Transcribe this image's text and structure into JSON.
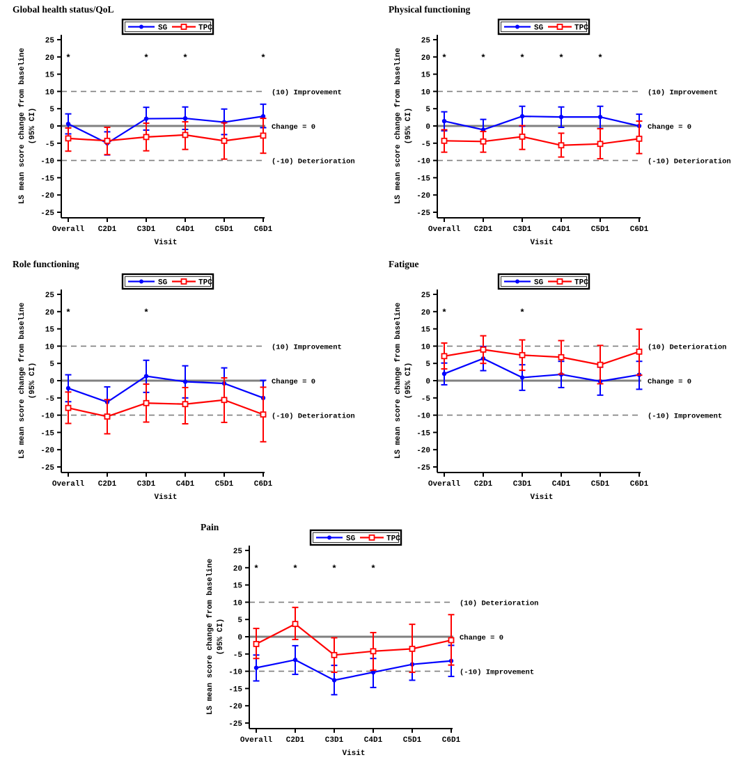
{
  "figure": {
    "categories": [
      "Overall",
      "C2D1",
      "C3D1",
      "C4D1",
      "C5D1",
      "C6D1"
    ],
    "xlabel": "Visit",
    "ylabel": "LS mean score change from baseline",
    "ylabel_line2": "(95% CI)",
    "yticks": [
      25,
      20,
      15,
      10,
      5,
      0,
      -5,
      -10,
      -15,
      -20,
      -25
    ],
    "ylim": [
      -25,
      25
    ],
    "grid": "off",
    "legend": {
      "position": "top-center",
      "entries": [
        {
          "label": "SG",
          "color": "#0000ff",
          "marker": "filled-circle"
        },
        {
          "label": "TPC",
          "color": "#ff0000",
          "marker": "open-square"
        }
      ]
    },
    "reference_lines": {
      "zero_value": 0,
      "upper_value": 10,
      "lower_value": -10,
      "zero_color": "#808080",
      "dashed_color": "#7f7f7f"
    },
    "significance_marker": "*",
    "significance_marker_y": 20
  },
  "chart_data": [
    {
      "type": "line",
      "title": "Global health status/QoL",
      "upper_label": "(10) Improvement",
      "zero_label": "Change = 0",
      "lower_label": "(-10) Deterioration",
      "significant_visits": [
        "Overall",
        "C3D1",
        "C4D1",
        "C6D1"
      ],
      "series": [
        {
          "name": "SG",
          "color": "#0000ff",
          "marker": "filled-circle",
          "values": [
            0.6,
            -5.0,
            2.1,
            2.2,
            1.1,
            2.8
          ],
          "ci_lower": [
            -2.3,
            -8.4,
            -1.2,
            -1.0,
            -2.5,
            -0.5
          ],
          "ci_upper": [
            3.5,
            -1.7,
            5.4,
            5.5,
            4.9,
            6.3
          ]
        },
        {
          "name": "TPC",
          "color": "#ff0000",
          "marker": "open-square",
          "values": [
            -3.6,
            -4.3,
            -3.2,
            -2.6,
            -4.3,
            -2.8
          ],
          "ci_lower": [
            -7.3,
            -8.3,
            -7.2,
            -6.8,
            -9.6,
            -7.9
          ],
          "ci_upper": [
            -0.6,
            -0.4,
            0.8,
            1.2,
            0.9,
            2.2
          ]
        }
      ]
    },
    {
      "type": "line",
      "title": "Physical functioning",
      "upper_label": "(10) Improvement",
      "zero_label": "Change = 0",
      "lower_label": "(-10) Deterioration",
      "significant_visits": [
        "Overall",
        "C2D1",
        "C3D1",
        "C4D1",
        "C5D1"
      ],
      "series": [
        {
          "name": "SG",
          "color": "#0000ff",
          "marker": "filled-circle",
          "values": [
            1.4,
            -1.1,
            2.8,
            2.6,
            2.6,
            0.0
          ],
          "ci_lower": [
            -1.4,
            -4.0,
            -0.1,
            -0.4,
            -0.7,
            -3.3
          ],
          "ci_upper": [
            4.1,
            1.9,
            5.7,
            5.5,
            5.7,
            3.4
          ]
        },
        {
          "name": "TPC",
          "color": "#ff0000",
          "marker": "open-square",
          "values": [
            -4.3,
            -4.5,
            -3.1,
            -5.6,
            -5.2,
            -3.7
          ],
          "ci_lower": [
            -7.6,
            -7.6,
            -6.8,
            -9.0,
            -9.5,
            -8.0
          ],
          "ci_upper": [
            -1.1,
            -1.6,
            0.1,
            -2.1,
            -0.8,
            1.4
          ]
        }
      ]
    },
    {
      "type": "line",
      "title": "Role functioning",
      "upper_label": "(10) Improvement",
      "zero_label": "Change = 0",
      "lower_label": "(-10) Deterioration",
      "significant_visits": [
        "Overall",
        "C3D1"
      ],
      "series": [
        {
          "name": "SG",
          "color": "#0000ff",
          "marker": "filled-circle",
          "values": [
            -2.2,
            -6.2,
            1.3,
            -0.3,
            -0.8,
            -5.0
          ],
          "ci_lower": [
            -6.1,
            -10.7,
            -3.4,
            -5.0,
            -5.3,
            -10.0
          ],
          "ci_upper": [
            1.7,
            -1.8,
            5.9,
            4.3,
            3.7,
            0.1
          ]
        },
        {
          "name": "TPC",
          "color": "#ff0000",
          "marker": "open-square",
          "values": [
            -7.9,
            -10.4,
            -6.5,
            -6.8,
            -5.6,
            -9.8
          ],
          "ci_lower": [
            -12.4,
            -15.4,
            -12.0,
            -12.5,
            -12.1,
            -17.7
          ],
          "ci_upper": [
            -3.3,
            -5.5,
            -1.0,
            -2.0,
            0.8,
            -1.9
          ]
        }
      ]
    },
    {
      "type": "line",
      "title": "Fatigue",
      "upper_label": "(10) Deterioration",
      "zero_label": "Change = 0",
      "lower_label": "(-10) Improvement",
      "significant_visits": [
        "Overall",
        "C3D1"
      ],
      "series": [
        {
          "name": "SG",
          "color": "#0000ff",
          "marker": "filled-circle",
          "values": [
            2.0,
            6.4,
            0.9,
            1.8,
            -0.2,
            1.7
          ],
          "ci_lower": [
            -1.2,
            2.9,
            -2.8,
            -2.0,
            -4.2,
            -2.5
          ],
          "ci_upper": [
            5.1,
            9.9,
            4.6,
            5.6,
            3.9,
            5.6
          ]
        },
        {
          "name": "TPC",
          "color": "#ff0000",
          "marker": "open-square",
          "values": [
            7.1,
            9.0,
            7.4,
            6.8,
            4.6,
            8.4
          ],
          "ci_lower": [
            3.4,
            5.0,
            3.0,
            1.9,
            -0.9,
            1.6
          ],
          "ci_upper": [
            10.9,
            13.0,
            11.8,
            11.6,
            10.2,
            14.9
          ]
        }
      ]
    },
    {
      "type": "line",
      "title": "Pain",
      "upper_label": "(10) Deterioration",
      "zero_label": "Change = 0",
      "lower_label": "(-10) Improvement",
      "significant_visits": [
        "Overall",
        "C2D1",
        "C3D1",
        "C4D1"
      ],
      "series": [
        {
          "name": "SG",
          "color": "#0000ff",
          "marker": "filled-circle",
          "values": [
            -9.0,
            -6.7,
            -12.6,
            -10.3,
            -8.0,
            -7.0
          ],
          "ci_lower": [
            -12.8,
            -10.9,
            -16.8,
            -14.7,
            -12.6,
            -11.5
          ],
          "ci_upper": [
            -5.3,
            -2.6,
            -8.3,
            -6.3,
            -3.5,
            -2.5
          ]
        },
        {
          "name": "TPC",
          "color": "#ff0000",
          "marker": "open-square",
          "values": [
            -2.1,
            3.7,
            -5.3,
            -4.2,
            -3.5,
            -1.0
          ],
          "ci_lower": [
            -6.3,
            -0.8,
            -10.3,
            -9.7,
            -10.3,
            -8.2
          ],
          "ci_upper": [
            2.4,
            8.5,
            -0.3,
            1.2,
            3.6,
            6.4
          ]
        }
      ]
    }
  ]
}
